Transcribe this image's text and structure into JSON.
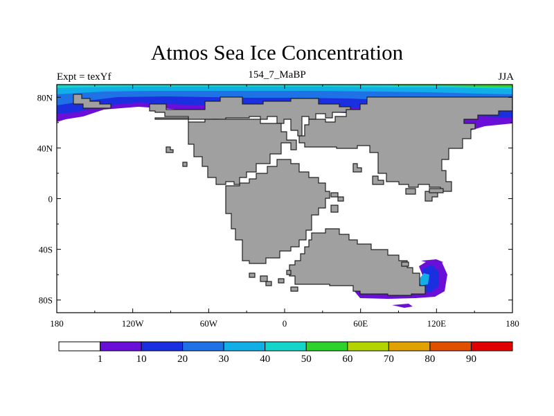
{
  "title": "Atmos Sea Ice Concentration",
  "subtitle_left": "Expt = texYf",
  "subtitle_center": "154_7_MaBP",
  "subtitle_right": "JJA",
  "axes": {
    "x_ticks": [
      {
        "value": -180,
        "label": "180"
      },
      {
        "value": -120,
        "label": "120W"
      },
      {
        "value": -60,
        "label": "60W"
      },
      {
        "value": 0,
        "label": "0"
      },
      {
        "value": 60,
        "label": "60E"
      },
      {
        "value": 120,
        "label": "120E"
      },
      {
        "value": 180,
        "label": "180"
      }
    ],
    "y_ticks": [
      {
        "value": 80,
        "label": "80N"
      },
      {
        "value": 40,
        "label": "40N"
      },
      {
        "value": 0,
        "label": "0"
      },
      {
        "value": -40,
        "label": "40S"
      },
      {
        "value": -80,
        "label": "80S"
      }
    ],
    "lon_range": [
      -180,
      180
    ],
    "lat_range": [
      -90,
      90
    ]
  },
  "colorbar": {
    "colors": [
      "#ffffff",
      "#6a0fd8",
      "#1a2fe0",
      "#1f72e6",
      "#12aee8",
      "#14d6c8",
      "#2fd22a",
      "#b4d400",
      "#e0a200",
      "#e04e00",
      "#e00000"
    ],
    "labels": [
      "1",
      "10",
      "20",
      "30",
      "40",
      "50",
      "60",
      "70",
      "80",
      "90"
    ]
  },
  "colors": {
    "land": "#a0a0a0",
    "land_outline": "#202020"
  }
}
